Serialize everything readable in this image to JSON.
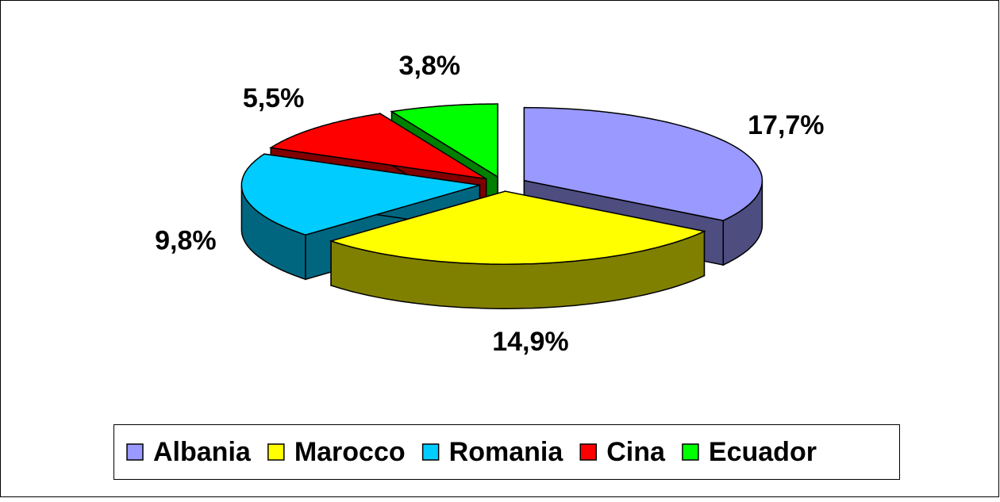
{
  "chart_data": {
    "type": "pie3d",
    "categories": [
      "Albania",
      "Marocco",
      "Romania",
      "Cina",
      "Ecuador"
    ],
    "values": [
      17.7,
      14.9,
      9.8,
      5.5,
      3.8
    ],
    "value_labels": [
      "17,7%",
      "14,9%",
      "9,8%",
      "5,5%",
      "3,8%"
    ],
    "colors": [
      "#9999FF",
      "#FFFF00",
      "#00CCFF",
      "#FF0000",
      "#00FF00"
    ],
    "side_colors": [
      "#4D4D80",
      "#808000",
      "#006680",
      "#800000",
      "#008000"
    ],
    "legend": "bottom"
  }
}
